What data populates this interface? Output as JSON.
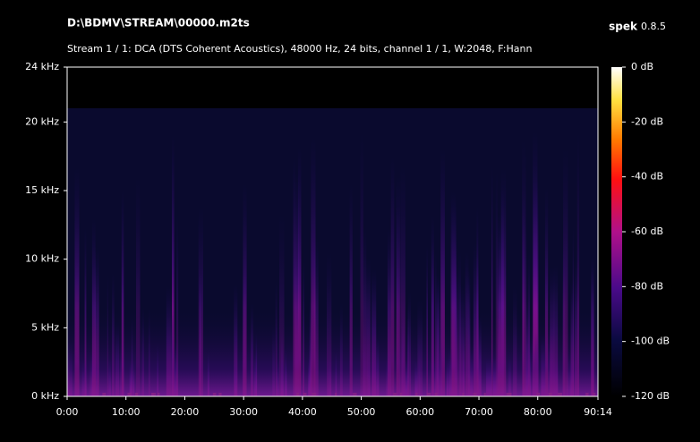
{
  "chart_data": {
    "type": "spectrogram",
    "title": "D:\\BDMV\\STREAM\\00000.m2ts",
    "app_name": "spek",
    "app_version": "0.8.5",
    "subtitle": "Stream 1 / 1: DCA (DTS Coherent Acoustics), 48000 Hz, 24 bits, channel 1 / 1, W:2048, F:Hann",
    "xlim": [
      0,
      90.2333
    ],
    "xticks": [
      {
        "value": 0,
        "label": "0:00"
      },
      {
        "value": 10,
        "label": "10:00"
      },
      {
        "value": 20,
        "label": "20:00"
      },
      {
        "value": 30,
        "label": "30:00"
      },
      {
        "value": 40,
        "label": "40:00"
      },
      {
        "value": 50,
        "label": "50:00"
      },
      {
        "value": 60,
        "label": "60:00"
      },
      {
        "value": 70,
        "label": "70:00"
      },
      {
        "value": 80,
        "label": "80:00"
      },
      {
        "value": 90.2333,
        "label": "90:14"
      }
    ],
    "ylim": [
      0,
      24
    ],
    "yticks": [
      {
        "value": 0,
        "label": "0 kHz"
      },
      {
        "value": 5,
        "label": "5 kHz"
      },
      {
        "value": 10,
        "label": "10 kHz"
      },
      {
        "value": 15,
        "label": "15 kHz"
      },
      {
        "value": 20,
        "label": "20 kHz"
      },
      {
        "value": 24,
        "label": "24 kHz"
      }
    ],
    "colorbar_lim": [
      -120,
      0
    ],
    "colorbar_ticks": [
      {
        "value": 0,
        "label": "0 dB"
      },
      {
        "value": -20,
        "label": "-20 dB"
      },
      {
        "value": -40,
        "label": "-40 dB"
      },
      {
        "value": -60,
        "label": "-60 dB"
      },
      {
        "value": -80,
        "label": "-80 dB"
      },
      {
        "value": -100,
        "label": "-100 dB"
      },
      {
        "value": -120,
        "label": "-120 dB"
      }
    ]
  }
}
